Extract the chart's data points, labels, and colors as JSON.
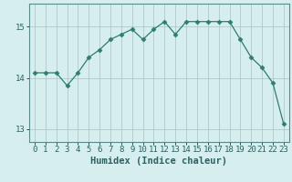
{
  "x": [
    0,
    1,
    2,
    3,
    4,
    5,
    6,
    7,
    8,
    9,
    10,
    11,
    12,
    13,
    14,
    15,
    16,
    17,
    18,
    19,
    20,
    21,
    22,
    23
  ],
  "y": [
    14.1,
    14.1,
    14.1,
    13.85,
    14.1,
    14.4,
    14.55,
    14.75,
    14.85,
    14.95,
    14.75,
    14.95,
    15.1,
    14.85,
    15.1,
    15.1,
    15.1,
    15.1,
    15.1,
    14.75,
    14.4,
    14.2,
    13.9,
    13.1
  ],
  "line_color": "#2e7d6e",
  "marker": "D",
  "marker_size": 2.5,
  "bg_color": "#d6eeee",
  "grid_color": "#b0c8c8",
  "xlabel": "Humidex (Indice chaleur)",
  "ylim": [
    12.75,
    15.45
  ],
  "yticks": [
    13,
    14,
    15
  ],
  "xlim": [
    -0.5,
    23.5
  ],
  "xticks": [
    0,
    1,
    2,
    3,
    4,
    5,
    6,
    7,
    8,
    9,
    10,
    11,
    12,
    13,
    14,
    15,
    16,
    17,
    18,
    19,
    20,
    21,
    22,
    23
  ],
  "xlabel_fontsize": 7.5,
  "tick_fontsize": 6.5
}
